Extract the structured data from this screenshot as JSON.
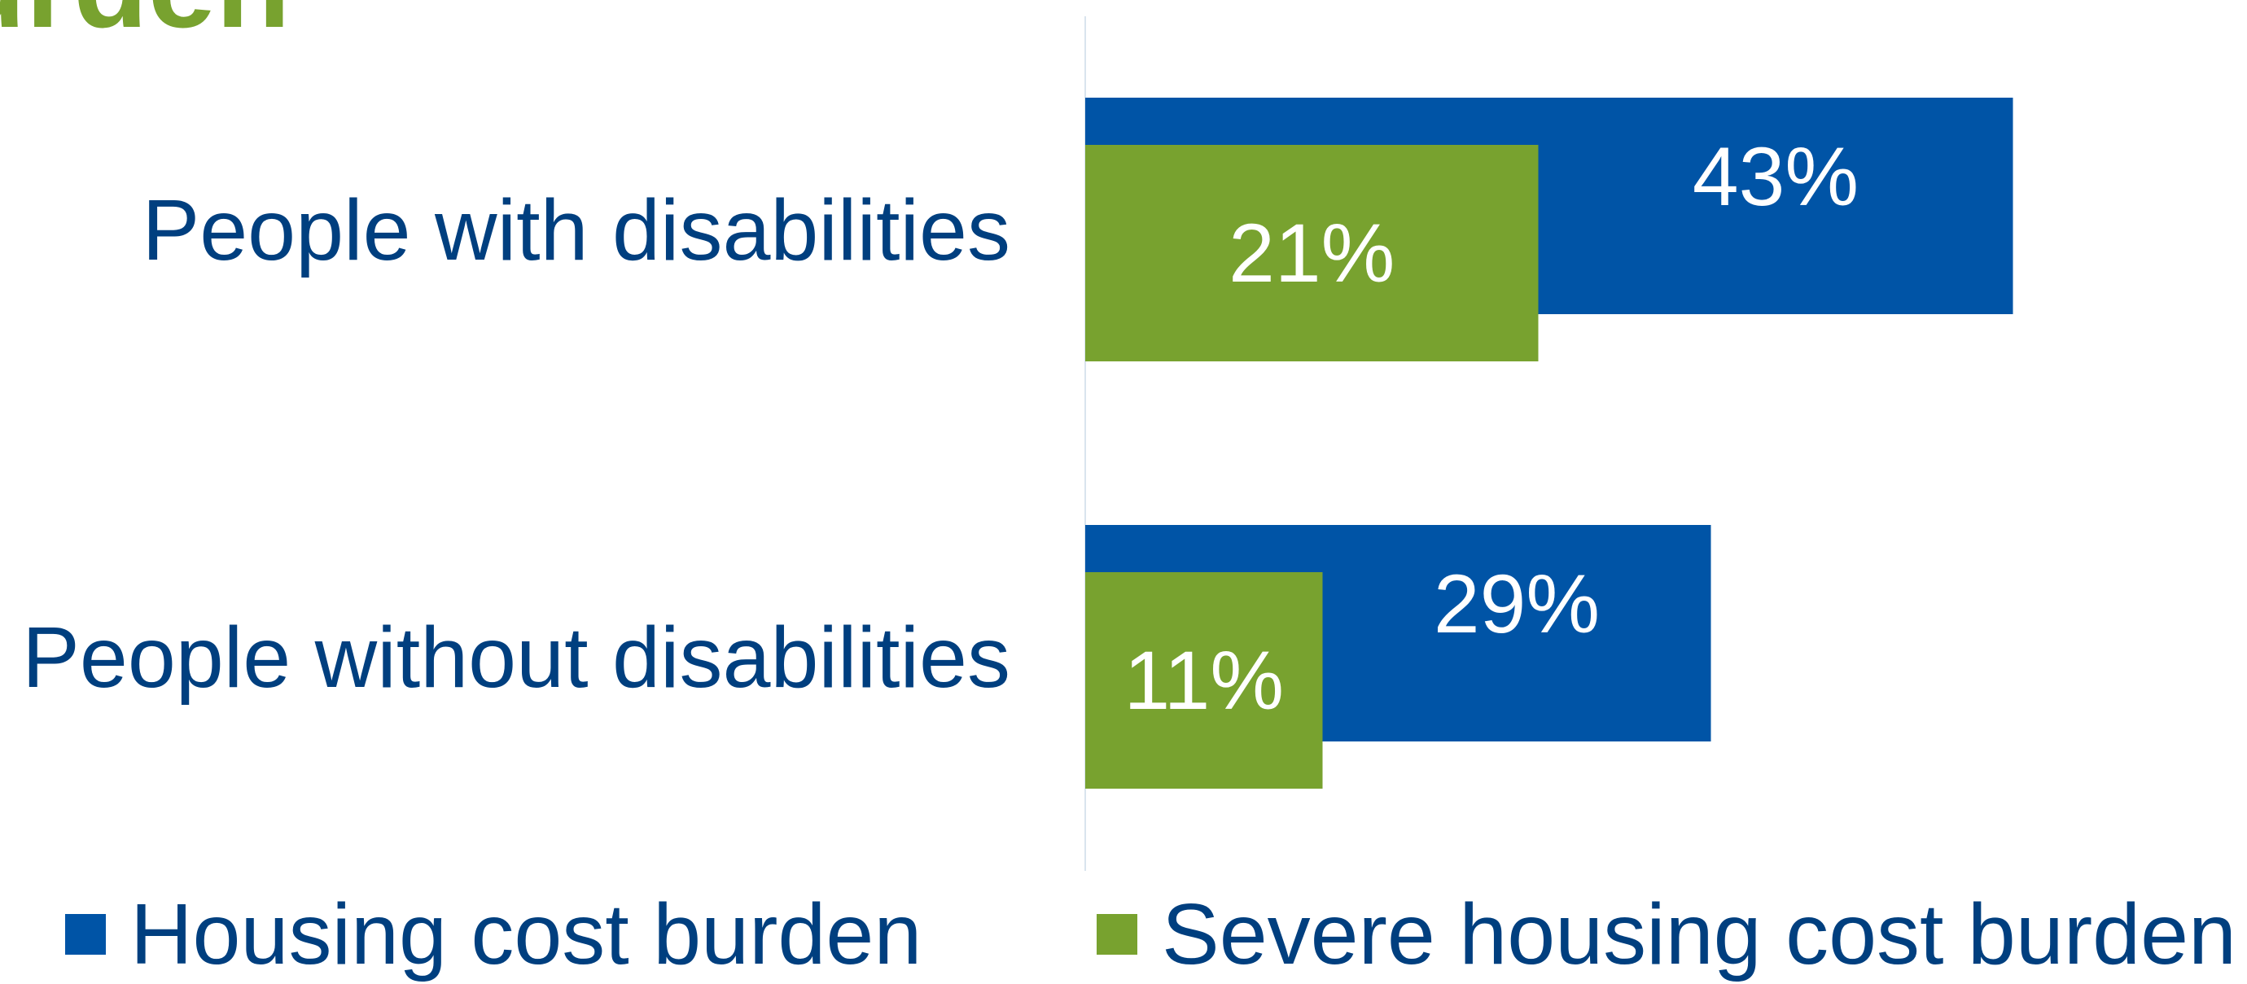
{
  "title_fragment": "urden",
  "colors": {
    "housing": "#0054a6",
    "severe": "#78a22f",
    "label_text": "#003f7f",
    "value_text": "#ffffff",
    "axis": "#d9e4ee"
  },
  "chart_data": {
    "type": "bar",
    "orientation": "horizontal",
    "categories": [
      "People with disabilities",
      "People without disabilities"
    ],
    "series": [
      {
        "name": "Housing cost burden",
        "values": [
          43,
          29
        ],
        "labels": [
          "43%",
          "29%"
        ],
        "color": "#0054a6"
      },
      {
        "name": "Severe housing cost burden",
        "values": [
          21,
          11
        ],
        "labels": [
          "21%",
          "11%"
        ],
        "color": "#78a22f"
      }
    ],
    "unit": "%",
    "xlim": [
      0,
      52
    ],
    "legend_position": "bottom",
    "grid": false
  },
  "legend": {
    "items": [
      {
        "label": "Housing cost burden",
        "color": "#0054a6"
      },
      {
        "label": "Severe housing cost burden",
        "color": "#78a22f"
      }
    ]
  }
}
